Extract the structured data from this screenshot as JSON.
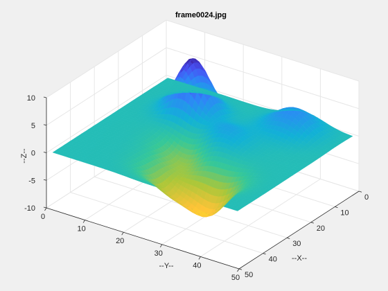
{
  "chart_data": {
    "type": "surface",
    "title": "frame0024.jpg",
    "xlabel": "--X--",
    "ylabel": "--Y--",
    "zlabel": "--Z--",
    "xlim": [
      0,
      50
    ],
    "ylim": [
      0,
      50
    ],
    "zlim": [
      -10,
      10
    ],
    "xticks": [
      0,
      10,
      20,
      30,
      40,
      50
    ],
    "yticks": [
      0,
      10,
      20,
      30,
      40,
      50
    ],
    "zticks": [
      -10,
      -5,
      0,
      5,
      10
    ],
    "xtick_labels": [
      "0",
      "10",
      "20",
      "30",
      "40",
      "50"
    ],
    "ytick_labels": [
      "0",
      "10",
      "20",
      "30",
      "40",
      "50"
    ],
    "ztick_labels": [
      "-10",
      "-5",
      "0",
      "5",
      "10"
    ],
    "grid": true,
    "colormap": "parula",
    "surface_extent": {
      "x": [
        1,
        49
      ],
      "y": [
        1,
        49
      ],
      "z_range": [
        -10,
        10
      ]
    },
    "features": [
      {
        "x": 13,
        "y": 15,
        "z": 10
      },
      {
        "x": 7,
        "y": 37,
        "z": 4
      },
      {
        "x": 21,
        "y": 27,
        "z": 3
      },
      {
        "x": 27,
        "y": 22,
        "z": -4
      },
      {
        "x": 38,
        "y": 25,
        "z": -4.5
      },
      {
        "x": 37,
        "y": 34,
        "z": -7
      }
    ]
  },
  "colors": {
    "figure_background": "#f0f0f0",
    "axes_background": "#ffffff",
    "grid": "#e6e6e6",
    "axis_line": "#262626"
  }
}
